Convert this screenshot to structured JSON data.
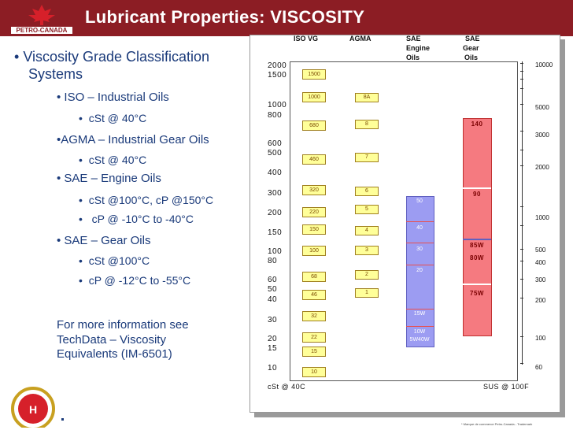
{
  "header": {
    "title": "Lubricant Properties: VISCOSITY",
    "logo_text": "PETRO-CANADA",
    "accent_color": "#8c1d24"
  },
  "left": {
    "bullet_main": "Viscosity Grade Classification",
    "bullet_main_2": "Systems",
    "iso": "• ISO – Industrial Oils",
    "iso_sub": "cSt @ 40°C",
    "agma": "•AGMA – Industrial Gear Oils",
    "agma_sub": "cSt @ 40°C",
    "sae_engine": "• SAE – Engine Oils",
    "sae_engine_sub1": "cSt @100°C, cP @150°C",
    "sae_engine_sub2": "cP @ -10°C to -40°C",
    "sae_gear": "• SAE – Gear Oils",
    "sae_gear_sub1": "cSt @100°C",
    "sae_gear_sub2": "cP @ -12°C to -55°C",
    "more_1": "For more information see",
    "more_2": "TechData – Viscosity",
    "more_3": "Equivalents (IM-6501)"
  },
  "chart": {
    "col_iso": "ISO VG",
    "col_agma": "AGMA",
    "col_sae_engine_1": "SAE",
    "col_sae_engine_2": "Engine",
    "col_sae_engine_3": "Oils",
    "col_sae_gear_1": "SAE",
    "col_sae_gear_2": "Gear",
    "col_sae_gear_3": "Oils",
    "x_left": "cSt @ 40C",
    "x_right": "SUS @ 100F",
    "cst_ticks": [
      "2000",
      "1500",
      "1000",
      "800",
      "600",
      "500",
      "400",
      "300",
      "200",
      "150",
      "100",
      "80",
      "60",
      "50",
      "40",
      "30",
      "20",
      "15",
      "10"
    ],
    "sus_ticks": [
      "10000",
      "5000",
      "3000",
      "2000",
      "1000",
      "500",
      "400",
      "300",
      "200",
      "100",
      "60"
    ],
    "iso_grades": [
      "1500",
      "1000",
      "680",
      "460",
      "320",
      "220",
      "150",
      "100",
      "68",
      "46",
      "32",
      "22",
      "15",
      "10"
    ],
    "agma_grades": [
      "8A",
      "8",
      "7",
      "6",
      "5",
      "4",
      "3",
      "2",
      "1"
    ],
    "engine_grades": [
      "50",
      "40",
      "30",
      "20",
      "15W",
      "10W",
      "5W40W"
    ],
    "gear_grades": [
      "140",
      "90",
      "85W",
      "80W",
      "75W"
    ]
  },
  "footer": {
    "trademark": "* Marque de commerce Petro-Canada - Trademark"
  }
}
